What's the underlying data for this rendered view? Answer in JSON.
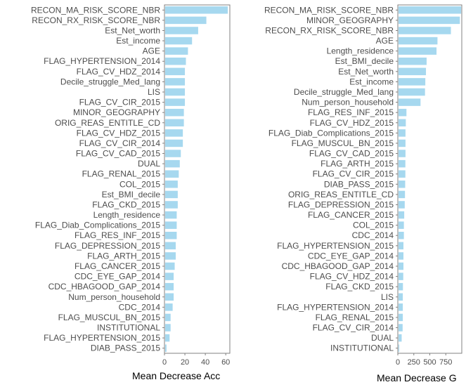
{
  "colors": {
    "bar": "#a6d8ef",
    "frame": "#808080",
    "text": "#4d4d4d",
    "title": "#000000"
  },
  "chart_data": [
    {
      "type": "bar",
      "orientation": "horizontal",
      "xlabel": "Mean Decrease Acc",
      "xlim": [
        0,
        64
      ],
      "xticks": [
        0,
        20,
        40,
        60
      ],
      "xtick_labels": [
        "0",
        "20",
        "40",
        "60"
      ],
      "categories": [
        "RECON_MA_RISK_SCORE_NBR",
        "RECON_RX_RISK_SCORE_NBR",
        "Est_Net_worth",
        "Est_income",
        "AGE",
        "FLAG_HYPERTENSION_2014",
        "FLAG_CV_HDZ_2014",
        "Decile_struggle_Med_lang",
        "LIS",
        "FLAG_CV_CIR_2015",
        "MINOR_GEOGRAPHY",
        "ORIG_REAS_ENTITLE_CD",
        "FLAG_CV_HDZ_2015",
        "FLAG_CV_CIR_2014",
        "FLAG_CV_CAD_2015",
        "DUAL",
        "FLAG_RENAL_2015",
        "COL_2015",
        "Est_BMI_decile",
        "FLAG_CKD_2015",
        "Length_residence",
        "FLAG_Diab_Complications_2015",
        "FLAG_RES_INF_2015",
        "FLAG_DEPRESSION_2015",
        "FLAG_ARTH_2015",
        "FLAG_CANCER_2015",
        "CDC_EYE_GAP_2014",
        "CDC_HBAGOOD_GAP_2014",
        "Num_person_household",
        "CDC_2014",
        "FLAG_MUSCUL_BN_2015",
        "INSTITUTIONAL",
        "FLAG_HYPERTENSION_2015",
        "DIAB_PASS_2015"
      ],
      "values": [
        62,
        41,
        33,
        27,
        23,
        21,
        20,
        20,
        20,
        20,
        19,
        19,
        18,
        18,
        16,
        15,
        14,
        13,
        13,
        13,
        12,
        12,
        12,
        11,
        11,
        10,
        9,
        9,
        9,
        8,
        6,
        6,
        5,
        2
      ]
    },
    {
      "type": "bar",
      "orientation": "horizontal",
      "xlabel": "Mean Decrease G",
      "xlim": [
        0,
        1000
      ],
      "xticks": [
        0,
        250,
        500,
        750
      ],
      "xtick_labels": [
        "0",
        "250",
        "500",
        "750"
      ],
      "categories": [
        "RECON_MA_RISK_SCORE_NBR",
        "MINOR_GEOGRAPHY",
        "RECON_RX_RISK_SCORE_NBR",
        "AGE",
        "Length_residence",
        "Est_BMI_decile",
        "Est_Net_worth",
        "Est_income",
        "Decile_struggle_Med_lang",
        "Num_person_household",
        "FLAG_RES_INF_2015",
        "FLAG_CV_HDZ_2015",
        "FLAG_Diab_Complications_2015",
        "FLAG_MUSCUL_BN_2015",
        "FLAG_CV_CAD_2015",
        "FLAG_ARTH_2015",
        "FLAG_CV_CIR_2015",
        "DIAB_PASS_2015",
        "ORIG_REAS_ENTITLE_CD",
        "FLAG_DEPRESSION_2015",
        "FLAG_CANCER_2015",
        "COL_2015",
        "CDC_2014",
        "FLAG_HYPERTENSION_2015",
        "CDC_EYE_GAP_2014",
        "CDC_HBAGOOD_GAP_2014",
        "FLAG_CV_HDZ_2014",
        "FLAG_CKD_2015",
        "LIS",
        "FLAG_HYPERTENSION_2014",
        "FLAG_RENAL_2015",
        "FLAG_CV_CIR_2014",
        "DUAL",
        "INSTITUTIONAL"
      ],
      "values": [
        990,
        970,
        830,
        620,
        605,
        450,
        440,
        430,
        425,
        355,
        135,
        125,
        120,
        120,
        120,
        118,
        118,
        115,
        112,
        108,
        100,
        95,
        95,
        88,
        88,
        88,
        85,
        80,
        78,
        78,
        78,
        75,
        60,
        10
      ]
    }
  ]
}
